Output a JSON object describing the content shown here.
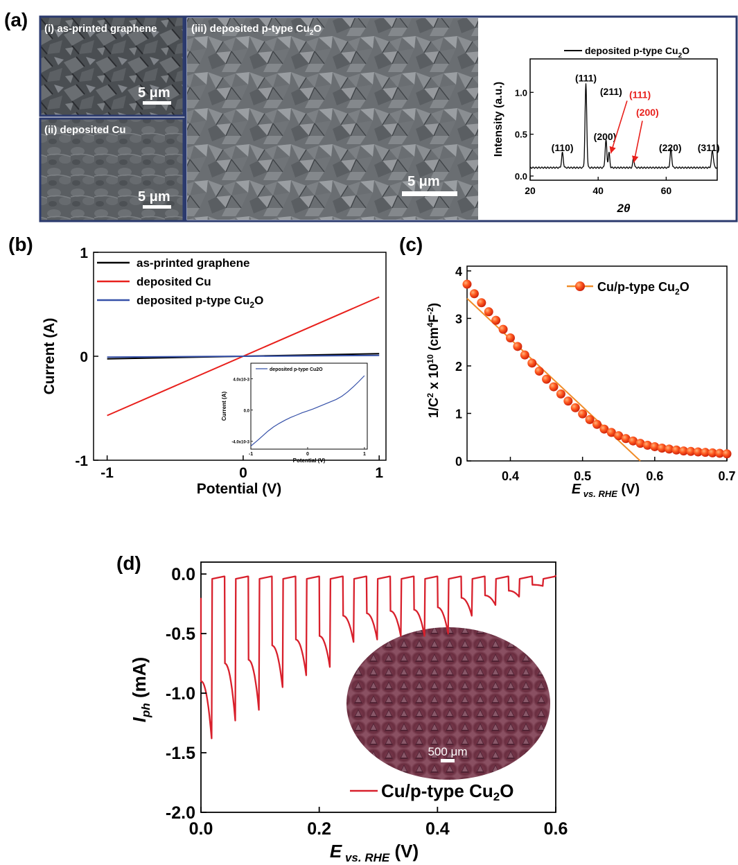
{
  "panels": {
    "a": {
      "label": "(a)",
      "sem_i": {
        "label": "(i) as-printed graphene",
        "scale": "5 μm"
      },
      "sem_ii": {
        "label": "(ii) deposited Cu",
        "scale": "5 μm"
      },
      "sem_iii": {
        "label_main": "(iii) deposited p-type Cu",
        "label_sub": "2",
        "label_end": "O",
        "scale": "5 μm"
      }
    },
    "b": {
      "label": "(b)"
    },
    "c": {
      "label": "(c)"
    },
    "d": {
      "label": "(d)",
      "inset_scale": "500 μm"
    }
  },
  "colors": {
    "red": "#e8201c",
    "black": "#000000",
    "blue": "#3550a8",
    "orange": "#f08c28",
    "frame": "#2b3a6e",
    "d_line": "#d8202c"
  },
  "chart_data": [
    {
      "id": "a-xrd",
      "type": "line",
      "xlabel": "2θ",
      "ylabel": "Intensity (a.u.)",
      "xlim": [
        20,
        75
      ],
      "ylim": [
        -0.05,
        1.4
      ],
      "xticks": [
        20,
        40,
        60
      ],
      "yticks": [
        0.0,
        0.5,
        1.0
      ],
      "ytick_labels": [
        "0.0",
        "0.5",
        "1.0"
      ],
      "legend": {
        "main": "deposited p-type Cu",
        "sub": "2",
        "end": "O",
        "position": "top-right"
      },
      "baseline": 0.1,
      "peaks": [
        {
          "x": 29.5,
          "y": 0.18,
          "w": 0.35
        },
        {
          "x": 36.4,
          "y": 1.0,
          "w": 0.35
        },
        {
          "x": 42.3,
          "y": 0.33,
          "w": 0.35
        },
        {
          "x": 43.2,
          "y": 0.18,
          "w": 0.3
        },
        {
          "x": 50.4,
          "y": 0.12,
          "w": 0.3
        },
        {
          "x": 61.4,
          "y": 0.22,
          "w": 0.35
        },
        {
          "x": 73.6,
          "y": 0.2,
          "w": 0.4
        }
      ],
      "annotations": [
        {
          "text": "(110)",
          "x": 29.5,
          "y": 0.3,
          "color": "#000000"
        },
        {
          "text": "(111)",
          "x": 36.4,
          "y": 1.13,
          "color": "#000000"
        },
        {
          "text": "(211)",
          "x": 43.8,
          "y": 0.97,
          "color": "#000000"
        },
        {
          "text": "(200)",
          "x": 42.0,
          "y": 0.43,
          "color": "#000000"
        },
        {
          "text": "(111)",
          "x": 52.3,
          "y": 0.93,
          "color": "#e8201c"
        },
        {
          "text": "(200)",
          "x": 54.5,
          "y": 0.72,
          "color": "#e8201c"
        },
        {
          "text": "(220)",
          "x": 61.2,
          "y": 0.3,
          "color": "#000000"
        },
        {
          "text": "(311)",
          "x": 72.5,
          "y": 0.3,
          "color": "#000000"
        }
      ],
      "arrows": [
        {
          "from": [
            48.5,
            0.9
          ],
          "to": [
            43.7,
            0.27
          ]
        },
        {
          "from": [
            53.0,
            0.66
          ],
          "to": [
            50.5,
            0.16
          ]
        }
      ]
    },
    {
      "id": "b-iv",
      "type": "line",
      "xlabel": "Potential (V)",
      "ylabel": "Current (A)",
      "xlim": [
        -1.1,
        1.05
      ],
      "ylim": [
        -1.0,
        1.0
      ],
      "xticks": [
        -1,
        0,
        1
      ],
      "yticks": [
        -1,
        0,
        1
      ],
      "legend_position": "top-left",
      "series": [
        {
          "name": "as-printed graphene",
          "color": "#000000",
          "x": [
            -1,
            1
          ],
          "y": [
            -0.025,
            0.025
          ]
        },
        {
          "name": "deposited Cu",
          "color": "#e8201c",
          "x": [
            -1,
            1
          ],
          "y": [
            -0.57,
            0.57
          ]
        },
        {
          "name_main": "deposited p-type Cu",
          "name_sub": "2",
          "name_end": "O",
          "color": "#3550a8",
          "x": [
            -1,
            1
          ],
          "y": [
            -0.008,
            0.008
          ]
        }
      ],
      "inset": {
        "xlabel": "Potential (V)",
        "ylabel": "Current (A)",
        "xlim": [
          -1.0,
          1.05
        ],
        "ylim": [
          -5.0,
          6.0
        ],
        "xticks": [
          -1,
          0,
          1
        ],
        "yticks": [
          -4,
          0,
          4
        ],
        "ytick_labels": [
          "-4.0x10-3",
          "0.0",
          "4.0x10-3"
        ],
        "legend": "deposited p-type Cu2O",
        "x": [
          -1.0,
          -0.9,
          -0.8,
          -0.7,
          -0.6,
          -0.5,
          -0.4,
          -0.3,
          -0.2,
          -0.1,
          0.0,
          0.1,
          0.2,
          0.3,
          0.4,
          0.5,
          0.6,
          0.7,
          0.8,
          0.9,
          1.0
        ],
        "y": [
          -4.6,
          -4.0,
          -3.35,
          -2.7,
          -2.15,
          -1.7,
          -1.3,
          -0.95,
          -0.65,
          -0.35,
          -0.1,
          0.15,
          0.45,
          0.75,
          1.05,
          1.35,
          1.75,
          2.3,
          2.95,
          3.65,
          4.4
        ]
      }
    },
    {
      "id": "c-mott-schottky",
      "type": "scatter",
      "xlabel": "E vs. RHE (V)",
      "ylabel": "1/C2 x 1010 (cm4F-2)",
      "xlim": [
        0.34,
        0.7
      ],
      "ylim": [
        0,
        4.1
      ],
      "xticks": [
        0.4,
        0.5,
        0.6,
        0.7
      ],
      "yticks": [
        0,
        1,
        2,
        3,
        4
      ],
      "legend": {
        "main": "Cu/p-type Cu",
        "sub": "2",
        "end": "O",
        "position": "top-right"
      },
      "points_x": [
        0.34,
        0.35,
        0.36,
        0.37,
        0.38,
        0.39,
        0.4,
        0.41,
        0.42,
        0.43,
        0.44,
        0.45,
        0.46,
        0.47,
        0.48,
        0.49,
        0.5,
        0.51,
        0.52,
        0.53,
        0.54,
        0.55,
        0.56,
        0.57,
        0.58,
        0.59,
        0.6,
        0.61,
        0.62,
        0.63,
        0.64,
        0.65,
        0.66,
        0.67,
        0.68,
        0.69,
        0.7
      ],
      "points_y": [
        3.72,
        3.52,
        3.33,
        3.14,
        2.96,
        2.77,
        2.59,
        2.41,
        2.23,
        2.06,
        1.89,
        1.72,
        1.56,
        1.41,
        1.26,
        1.12,
        0.99,
        0.87,
        0.77,
        0.67,
        0.6,
        0.53,
        0.47,
        0.42,
        0.37,
        0.33,
        0.3,
        0.27,
        0.25,
        0.23,
        0.21,
        0.2,
        0.19,
        0.18,
        0.17,
        0.16,
        0.15
      ],
      "fit_line": {
        "x": [
          0.34,
          0.58
        ],
        "y": [
          3.42,
          0.0
        ]
      }
    },
    {
      "id": "d-chopped",
      "type": "line",
      "xlabel": "E vs. RHE (V)",
      "ylabel": "Iph (mA)",
      "xlim": [
        0.0,
        0.6
      ],
      "ylim": [
        -2.0,
        0.1
      ],
      "xticks": [
        0.0,
        0.2,
        0.4,
        0.6
      ],
      "yticks": [
        0.0,
        -0.5,
        -1.0,
        -1.5,
        -2.0
      ],
      "legend": {
        "main": "Cu/p-type Cu",
        "sub": "2",
        "end": "O",
        "position": "bottom-right"
      },
      "cycles": [
        {
          "start": 0.0,
          "on": -0.9,
          "peak": -1.38
        },
        {
          "start": 0.04,
          "on": -0.75,
          "peak": -1.23
        },
        {
          "start": 0.08,
          "on": -0.72,
          "peak": -1.14
        },
        {
          "start": 0.12,
          "on": -0.6,
          "peak": -0.95
        },
        {
          "start": 0.16,
          "on": -0.55,
          "peak": -0.85
        },
        {
          "start": 0.2,
          "on": -0.52,
          "peak": -0.78
        },
        {
          "start": 0.24,
          "on": -0.35,
          "peak": -0.57
        },
        {
          "start": 0.28,
          "on": -0.33,
          "peak": -0.55
        },
        {
          "start": 0.32,
          "on": -0.31,
          "peak": -0.52
        },
        {
          "start": 0.36,
          "on": -0.3,
          "peak": -0.52
        },
        {
          "start": 0.4,
          "on": -0.28,
          "peak": -0.5
        },
        {
          "start": 0.44,
          "on": -0.2,
          "peak": -0.35
        },
        {
          "start": 0.48,
          "on": -0.18,
          "peak": -0.26
        },
        {
          "start": 0.52,
          "on": -0.14,
          "peak": -0.19
        },
        {
          "start": 0.56,
          "on": -0.09,
          "peak": -0.1
        }
      ]
    }
  ]
}
